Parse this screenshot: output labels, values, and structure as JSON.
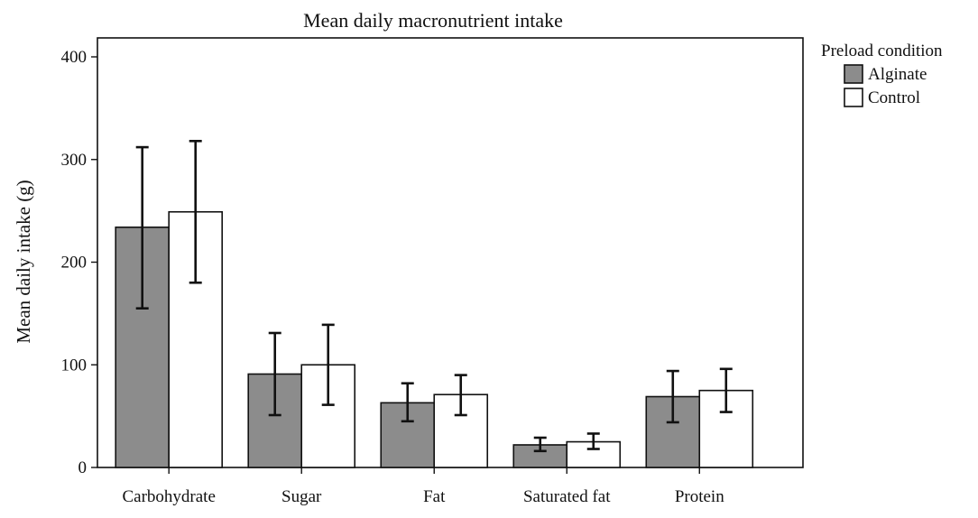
{
  "colors": {
    "alginate": "#8c8c8c",
    "control": "#ffffff",
    "stroke": "#111111"
  },
  "chart_data": {
    "type": "bar",
    "title": "Mean daily macronutrient intake",
    "xlabel": "",
    "ylabel": "Mean daily intake (g)",
    "ylim": [
      0,
      400
    ],
    "yticks": [
      0,
      100,
      200,
      300,
      400
    ],
    "categories": [
      "Carbohydrate",
      "Sugar",
      "Fat",
      "Saturated fat",
      "Protein"
    ],
    "legend_title": "Preload condition",
    "legend_position": "top-right",
    "series": [
      {
        "name": "Alginate",
        "values": [
          234,
          91,
          63,
          22,
          69
        ],
        "error_low": [
          155,
          51,
          45,
          16,
          44
        ],
        "error_high": [
          312,
          131,
          82,
          29,
          94
        ]
      },
      {
        "name": "Control",
        "values": [
          249,
          100,
          71,
          25,
          75
        ],
        "error_low": [
          180,
          61,
          51,
          18,
          54
        ],
        "error_high": [
          318,
          139,
          90,
          33,
          96
        ]
      }
    ]
  }
}
